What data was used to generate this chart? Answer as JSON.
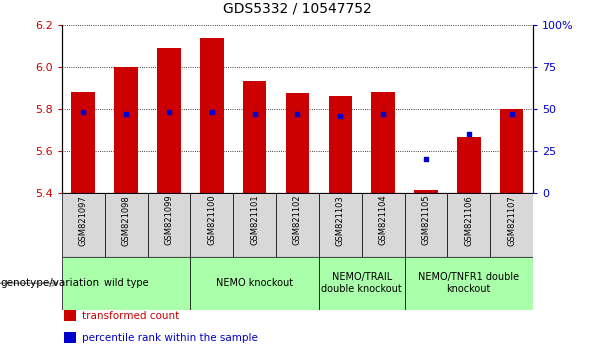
{
  "title": "GDS5332 / 10547752",
  "samples": [
    "GSM821097",
    "GSM821098",
    "GSM821099",
    "GSM821100",
    "GSM821101",
    "GSM821102",
    "GSM821103",
    "GSM821104",
    "GSM821105",
    "GSM821106",
    "GSM821107"
  ],
  "bar_tops": [
    5.88,
    6.0,
    6.09,
    6.135,
    5.932,
    5.875,
    5.862,
    5.882,
    5.413,
    5.668,
    5.8
  ],
  "bar_bottom": 5.4,
  "percentile": [
    48,
    47,
    48,
    48,
    47,
    47,
    46,
    47,
    20,
    35,
    47
  ],
  "ylim_left": [
    5.4,
    6.2
  ],
  "ylim_right": [
    0,
    100
  ],
  "yticks_left": [
    5.4,
    5.6,
    5.8,
    6.0,
    6.2
  ],
  "yticks_right": [
    0,
    25,
    50,
    75,
    100
  ],
  "ytick_labels_right": [
    "0",
    "25",
    "50",
    "75",
    "100%"
  ],
  "bar_color": "#cc0000",
  "dot_color": "#0000cc",
  "bar_width": 0.55,
  "groups": [
    {
      "label": "wild type",
      "start": 0,
      "end": 2,
      "color": "#aaffaa"
    },
    {
      "label": "NEMO knockout",
      "start": 3,
      "end": 5,
      "color": "#aaffaa"
    },
    {
      "label": "NEMO/TRAIL\ndouble knockout",
      "start": 6,
      "end": 7,
      "color": "#aaffaa"
    },
    {
      "label": "NEMO/TNFR1 double\nknockout",
      "start": 8,
      "end": 10,
      "color": "#aaffaa"
    }
  ],
  "genotype_label": "genotype/variation",
  "legend_items": [
    {
      "label": "transformed count",
      "color": "#cc0000"
    },
    {
      "label": "percentile rank within the sample",
      "color": "#0000cc"
    }
  ],
  "sample_box_color": "#d8d8d8",
  "bg_color": "#ffffff",
  "tick_color_left": "#cc0000",
  "tick_color_right": "#0000cc",
  "title_fontsize": 10,
  "tick_fontsize": 8,
  "sample_fontsize": 6.0,
  "group_fontsize": 7,
  "legend_fontsize": 7.5,
  "genotype_fontsize": 7.5
}
